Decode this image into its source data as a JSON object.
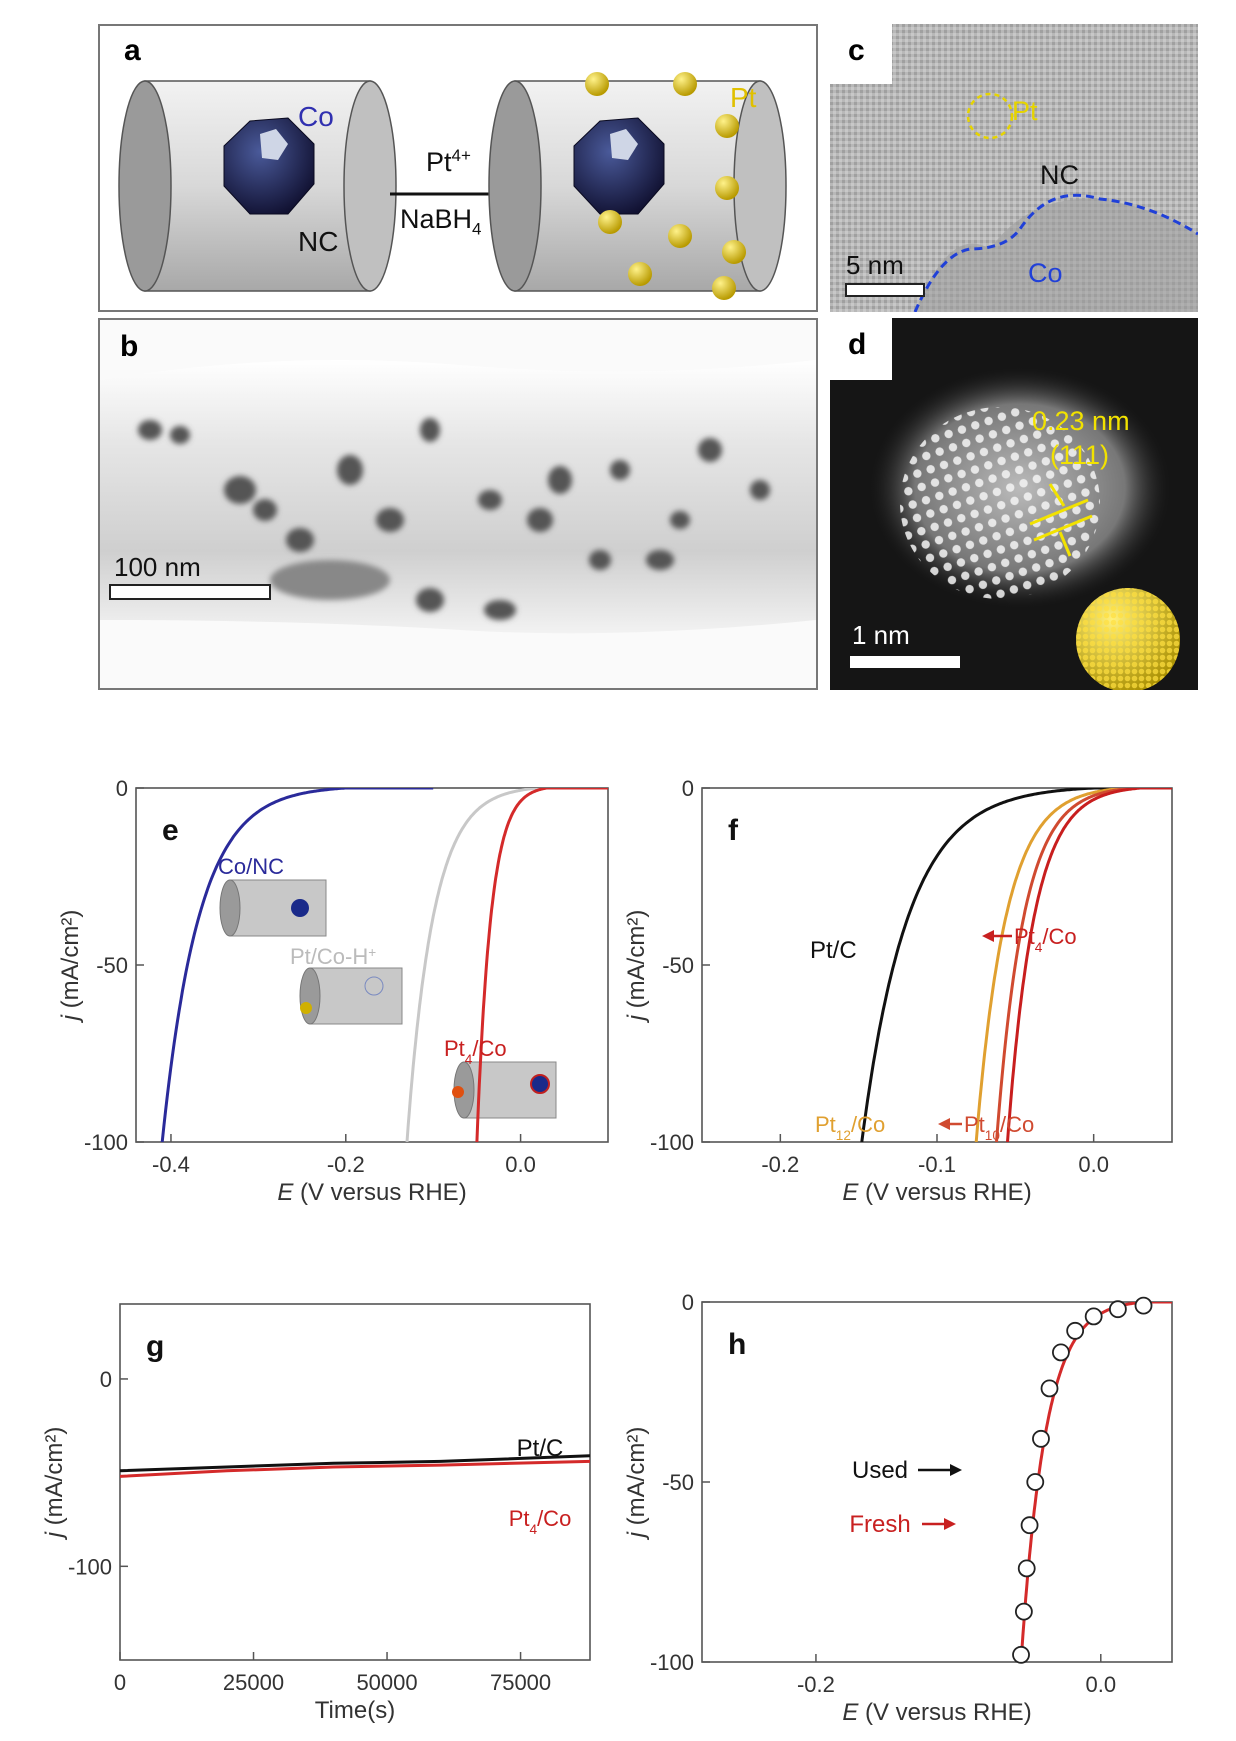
{
  "panel_a": {
    "label": "a",
    "co_label": "Co",
    "pt_label": "Pt",
    "nc_label": "NC",
    "reagent_top": "Pt",
    "reagent_top_sup": "4+",
    "reagent_bottom": "NaBH",
    "reagent_bottom_sub": "4",
    "colors": {
      "co": "#2b2ba8",
      "pt": "#e0c000",
      "cylinder": "#cfcfcf"
    }
  },
  "panel_b": {
    "label": "b",
    "scalebar": "100 nm"
  },
  "panel_c": {
    "label": "c",
    "pt_label": "Pt",
    "nc_label": "NC",
    "co_label": "Co",
    "scalebar": "5 nm"
  },
  "panel_d": {
    "label": "d",
    "spacing": "0.23 nm",
    "plane": "(111)",
    "scalebar": "1 nm"
  },
  "chart_data": [
    {
      "id": "e",
      "type": "line",
      "label": "e",
      "xlabel_italic": "E",
      "xlabel_rest": " (V versus RHE)",
      "ylabel_italic": "j",
      "ylabel_rest": " (mA/cm²)",
      "xlim": [
        -0.44,
        0.1
      ],
      "ylim": [
        -100,
        0
      ],
      "xticks": [
        -0.4,
        -0.2,
        0.0
      ],
      "xtick_labels": [
        "-0.4",
        "-0.2",
        "0.0"
      ],
      "yticks": [
        0,
        -50,
        -100
      ],
      "ytick_labels": [
        "0",
        "-50",
        "-100"
      ],
      "series": [
        {
          "name": "Co/NC",
          "color": "#2a2a9a",
          "onset": -0.2,
          "end": -0.41
        },
        {
          "name": "Pt/Co-H⁺",
          "color": "#c8c8c8",
          "onset": 0.02,
          "end": -0.13
        },
        {
          "name": "Pt₄/Co",
          "color": "#d42a2a",
          "onset": 0.03,
          "end": -0.05
        }
      ],
      "annotations": {
        "conc": "Co/NC",
        "ptcoh_main": "Pt/Co-H",
        "ptcoh_sup": "+",
        "pt4_main": "Pt",
        "pt4_sub": "4",
        "pt4_rest": "/Co"
      }
    },
    {
      "id": "f",
      "type": "line",
      "label": "f",
      "xlabel_italic": "E",
      "xlabel_rest": " (V versus RHE)",
      "ylabel_italic": "j",
      "ylabel_rest": " (mA/cm²)",
      "xlim": [
        -0.25,
        0.05
      ],
      "ylim": [
        -100,
        0
      ],
      "xticks": [
        -0.2,
        -0.1,
        0.0
      ],
      "xtick_labels": [
        "-0.2",
        "-0.1",
        "0.0"
      ],
      "yticks": [
        0,
        -50,
        -100
      ],
      "ytick_labels": [
        "0",
        "-50",
        "-100"
      ],
      "series": [
        {
          "name": "Pt/C",
          "color": "#111111",
          "onset": 0.0,
          "end": -0.148
        },
        {
          "name": "Pt₁₂/Co",
          "color": "#e0a030",
          "onset": 0.02,
          "end": -0.075
        },
        {
          "name": "Pt₁₀/Co",
          "color": "#d04a30",
          "onset": 0.025,
          "end": -0.062
        },
        {
          "name": "Pt₄/Co",
          "color": "#c81e1e",
          "onset": 0.03,
          "end": -0.055
        }
      ],
      "annotations": {
        "ptc": "Pt/C",
        "pt4_main": "Pt",
        "pt4_sub": "4",
        "pt4_rest": "/Co",
        "pt12_main": "Pt",
        "pt12_sub": "12",
        "pt12_rest": "/Co",
        "pt10_main": "Pt",
        "pt10_sub": "10",
        "pt10_rest": "/Co"
      }
    },
    {
      "id": "g",
      "type": "line",
      "label": "g",
      "xlabel": "Time(s)",
      "ylabel_italic": "j",
      "ylabel_rest": " (mA/cm²)",
      "xlim": [
        0,
        88000
      ],
      "ylim": [
        -150,
        40
      ],
      "xticks": [
        0,
        25000,
        50000,
        75000
      ],
      "xtick_labels": [
        "0",
        "25000",
        "50000",
        "75000"
      ],
      "yticks": [
        0,
        -100
      ],
      "ytick_labels": [
        "0",
        "-100"
      ],
      "series": [
        {
          "name": "Pt/C",
          "color": "#111111",
          "x": [
            0,
            20000,
            40000,
            60000,
            88000
          ],
          "y": [
            -49,
            -47,
            -45,
            -44,
            -41
          ]
        },
        {
          "name": "Pt₄/Co",
          "color": "#d42a2a",
          "x": [
            0,
            20000,
            40000,
            60000,
            88000
          ],
          "y": [
            -52,
            -49,
            -47,
            -46,
            -44
          ]
        }
      ],
      "annotations": {
        "ptc": "Pt/C",
        "pt4_main": "Pt",
        "pt4_sub": "4",
        "pt4_rest": "/Co"
      }
    },
    {
      "id": "h",
      "type": "line",
      "label": "h",
      "xlabel_italic": "E",
      "xlabel_rest": " (V versus RHE)",
      "ylabel_italic": "j",
      "ylabel_rest": " (mA/cm²)",
      "xlim": [
        -0.28,
        0.05
      ],
      "ylim": [
        -100,
        0
      ],
      "xticks": [
        -0.2,
        0.0
      ],
      "xtick_labels": [
        "-0.2",
        "0.0"
      ],
      "yticks": [
        0,
        -50,
        -100
      ],
      "ytick_labels": [
        "0",
        "-50",
        "-100"
      ],
      "series": [
        {
          "name": "Fresh",
          "color": "#d42a2a",
          "onset": 0.03,
          "end": -0.056
        },
        {
          "name": "Used",
          "color": "#111111",
          "marker": "open-circle",
          "x": [
            0.03,
            0.012,
            -0.005,
            -0.018,
            -0.028,
            -0.036,
            -0.042,
            -0.046,
            -0.05,
            -0.052,
            -0.054,
            -0.056
          ],
          "y": [
            -1,
            -2,
            -4,
            -8,
            -14,
            -24,
            -38,
            -50,
            -62,
            -74,
            -86,
            -98
          ]
        }
      ],
      "annotations": {
        "used": "Used",
        "fresh": "Fresh"
      }
    }
  ]
}
